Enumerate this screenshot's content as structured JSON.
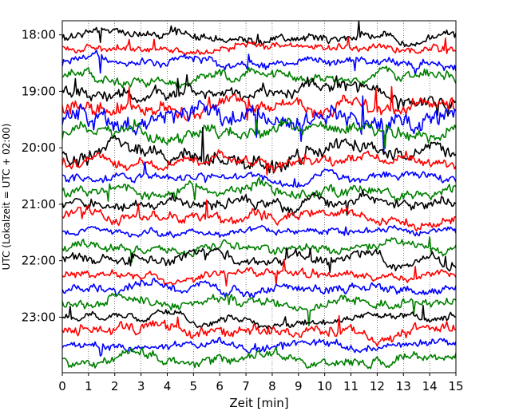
{
  "chart_data": {
    "type": "line",
    "title": "",
    "xlabel": "Zeit  [min]",
    "ylabel": "UTC (Lokalzeit = UTC + 02:00)",
    "xlim": [
      0,
      15
    ],
    "x_ticks": [
      "0",
      "1",
      "2",
      "3",
      "4",
      "5",
      "6",
      "7",
      "8",
      "9",
      "10",
      "11",
      "12",
      "13",
      "14",
      "15"
    ],
    "y_ticks": [
      "18:00",
      "19:00",
      "20:00",
      "21:00",
      "22:00",
      "23:00"
    ],
    "y_range": [
      "17:45",
      "23:59"
    ],
    "trace_interval_minutes": 15,
    "trace_count": 24,
    "trace_colors": [
      "#000000",
      "#ff0000",
      "#0000ff",
      "#008000"
    ],
    "grid": "vertical dotted at each minute",
    "legend": "none"
  }
}
